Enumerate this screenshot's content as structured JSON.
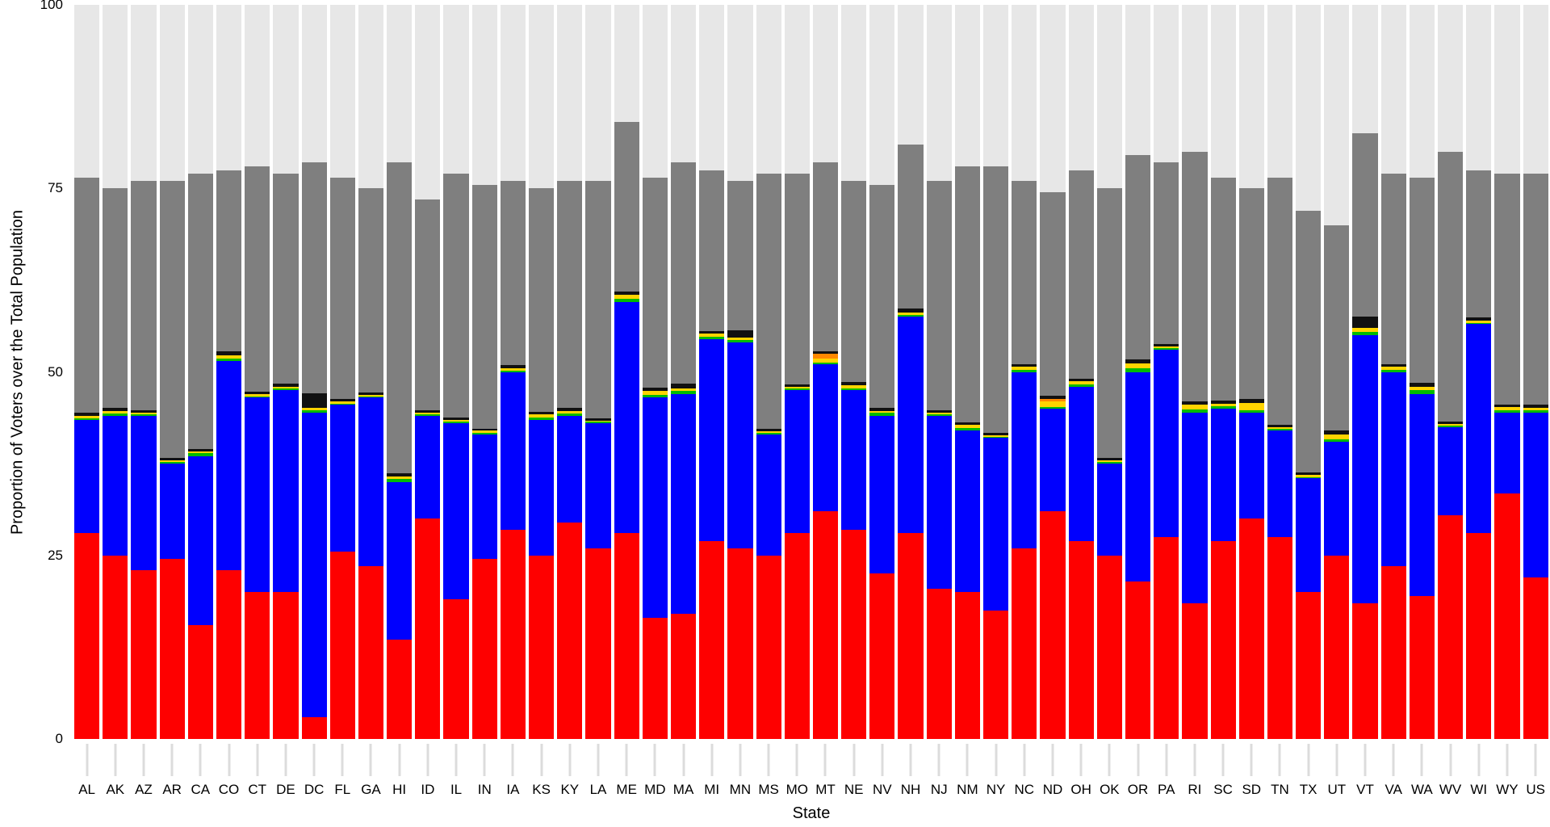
{
  "chart_data": {
    "type": "bar",
    "stacked": true,
    "title": "",
    "xlabel": "State",
    "ylabel": "Proportion of Voters over the Total Population",
    "ylim": [
      0,
      100
    ],
    "yticks": [
      0,
      25,
      50,
      75,
      100
    ],
    "grid": false,
    "legend": "none",
    "colors": {
      "background": "#e7e7e7",
      "nonvoter": "#7f7f7f"
    },
    "categories": [
      "AL",
      "AK",
      "AZ",
      "AR",
      "CA",
      "CO",
      "CT",
      "DE",
      "DC",
      "FL",
      "GA",
      "HI",
      "ID",
      "IL",
      "IN",
      "IA",
      "KS",
      "KY",
      "LA",
      "ME",
      "MD",
      "MA",
      "MI",
      "MN",
      "MS",
      "MO",
      "MT",
      "NE",
      "NV",
      "NH",
      "NJ",
      "NM",
      "NY",
      "NC",
      "ND",
      "OH",
      "OK",
      "OR",
      "PA",
      "RI",
      "SC",
      "SD",
      "TN",
      "TX",
      "UT",
      "VT",
      "VA",
      "WA",
      "WV",
      "WI",
      "WY",
      "US"
    ],
    "series": [
      {
        "name": "red",
        "color": "#fe0000",
        "values": [
          28,
          25,
          23,
          24.5,
          15.5,
          23,
          20,
          20,
          3,
          25.5,
          23.5,
          13.5,
          30,
          19,
          24.5,
          28.5,
          25,
          29.5,
          26,
          28,
          16.5,
          17,
          27,
          26,
          25,
          28,
          31,
          28.5,
          22.5,
          28,
          20.5,
          20,
          17.5,
          26,
          31,
          27,
          25,
          21.5,
          27.5,
          18.5,
          27,
          30,
          27.5,
          20,
          25,
          18.5,
          23.5,
          19.5,
          30.5,
          28,
          33.5,
          22
        ]
      },
      {
        "name": "blue",
        "color": "#0000fe",
        "values": [
          15.5,
          19,
          21,
          13,
          23,
          28.5,
          26.5,
          27.5,
          41.5,
          20,
          23,
          21.5,
          14,
          24,
          17,
          21.5,
          18.5,
          14.5,
          17,
          31.5,
          30,
          30,
          27.5,
          28,
          16.5,
          19.5,
          20,
          19,
          21.5,
          29.5,
          23.5,
          22,
          23.5,
          24,
          14,
          21,
          12.5,
          28.5,
          25.5,
          26,
          18,
          14.5,
          14.5,
          15.5,
          15.5,
          36.5,
          26.5,
          27.5,
          12,
          28.5,
          11,
          22.5
        ]
      },
      {
        "name": "green",
        "color": "#00bb00",
        "values": [
          0.2,
          0.3,
          0.2,
          0.2,
          0.4,
          0.3,
          0.2,
          0.2,
          0.3,
          0.2,
          0.2,
          0.4,
          0.2,
          0.2,
          0.2,
          0.2,
          0.3,
          0.3,
          0.2,
          0.5,
          0.4,
          0.4,
          0.3,
          0.3,
          0.2,
          0.2,
          0.3,
          0.3,
          0.4,
          0.3,
          0.2,
          0.4,
          0.2,
          0.3,
          0.2,
          0.3,
          0.2,
          0.5,
          0.2,
          0.4,
          0.3,
          0.3,
          0.2,
          0.2,
          0.3,
          0.4,
          0.3,
          0.5,
          0.2,
          0.2,
          0.3,
          0.3
        ]
      },
      {
        "name": "yellow",
        "color": "#ffd400",
        "values": [
          0.3,
          0.4,
          0.3,
          0.3,
          0.3,
          0.5,
          0.3,
          0.3,
          0.3,
          0.3,
          0.2,
          0.4,
          0.3,
          0.3,
          0.3,
          0.3,
          0.4,
          0.4,
          0.2,
          0.5,
          0.5,
          0.4,
          0.4,
          0.4,
          0.2,
          0.3,
          0.5,
          0.4,
          0.3,
          0.3,
          0.3,
          0.4,
          0.2,
          0.4,
          0.8,
          0.4,
          0.3,
          0.7,
          0.3,
          0.6,
          0.4,
          1.0,
          0.3,
          0.3,
          0.7,
          0.6,
          0.4,
          0.5,
          0.2,
          0.3,
          0.4,
          0.3
        ]
      },
      {
        "name": "orange",
        "color": "#ff8800",
        "values": [
          0,
          0,
          0,
          0,
          0,
          0,
          0,
          0,
          0,
          0,
          0,
          0,
          0,
          0,
          0,
          0,
          0,
          0,
          0,
          0,
          0,
          0,
          0,
          0,
          0,
          0,
          0.7,
          0,
          0,
          0,
          0,
          0,
          0,
          0,
          0.3,
          0,
          0,
          0,
          0,
          0,
          0,
          0,
          0,
          0,
          0,
          0,
          0,
          0,
          0,
          0,
          0,
          0
        ]
      },
      {
        "name": "black",
        "color": "#111111",
        "values": [
          0.4,
          0.4,
          0.3,
          0.3,
          0.3,
          0.5,
          0.3,
          0.4,
          2.0,
          0.3,
          0.3,
          0.4,
          0.3,
          0.3,
          0.3,
          0.4,
          0.4,
          0.4,
          0.3,
          0.5,
          0.5,
          0.6,
          0.4,
          1.0,
          0.3,
          0.3,
          0.3,
          0.4,
          0.4,
          0.5,
          0.3,
          0.3,
          0.3,
          0.4,
          0.5,
          0.4,
          0.3,
          0.5,
          0.3,
          0.5,
          0.4,
          0.5,
          0.3,
          0.3,
          0.5,
          1.5,
          0.4,
          0.5,
          0.3,
          0.4,
          0.4,
          0.4
        ]
      }
    ],
    "bar_totals": [
      76.5,
      75,
      76,
      76,
      77,
      77.5,
      78,
      77,
      78.5,
      76.5,
      75,
      78.5,
      73.5,
      77,
      75.5,
      76,
      75,
      76,
      76,
      84,
      76.5,
      78.5,
      77.5,
      76,
      77,
      77,
      78.5,
      76,
      75.5,
      81,
      76,
      78,
      78,
      76,
      74.5,
      77.5,
      75,
      79.5,
      78.5,
      80,
      76.5,
      75,
      76.5,
      72,
      70,
      82.5,
      77,
      76.5,
      80,
      77.5,
      77,
      77
    ]
  }
}
